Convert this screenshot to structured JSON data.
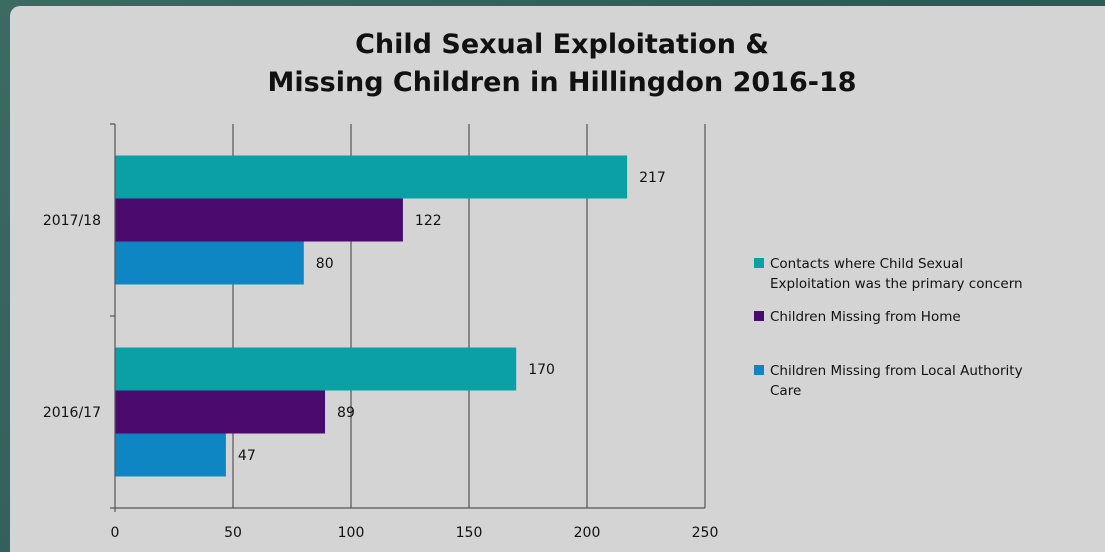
{
  "chart_data": {
    "type": "bar",
    "orientation": "horizontal",
    "title": [
      "Child Sexual Exploitation &",
      "Missing Children in  Hillingdon 2016-18"
    ],
    "categories": [
      "2017/18",
      "2016/17"
    ],
    "series": [
      {
        "name": [
          "Contacts where Child Sexual",
          "Exploitation was the primary concern"
        ],
        "values": [
          217,
          170
        ],
        "color": "#0aa0a6"
      },
      {
        "name": [
          "Children Missing from Home"
        ],
        "values": [
          122,
          89
        ],
        "color": "#4a0a6e"
      },
      {
        "name": [
          "Children Missing from Local Authority",
          "Care"
        ],
        "values": [
          80,
          47
        ],
        "color": "#0f86c4"
      }
    ],
    "xlim": [
      0,
      250
    ],
    "xticks": [
      0,
      50,
      100,
      150,
      200,
      250
    ],
    "grid": true,
    "legend_position": "right"
  }
}
